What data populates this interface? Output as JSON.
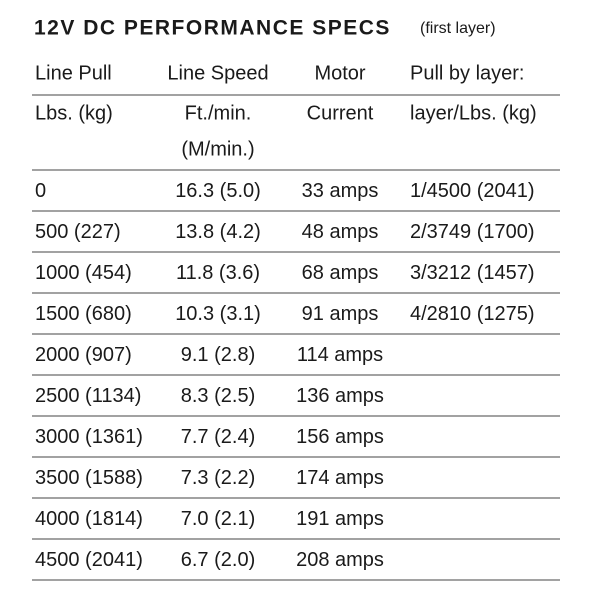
{
  "title": "12V DC PERFORMANCE SPECS",
  "subtitle": "(first layer)",
  "header": {
    "top": [
      "Line Pull",
      "Line Speed",
      "Motor",
      "Pull by layer:"
    ],
    "bottom": [
      "Lbs. (kg)",
      "Ft./min.",
      "Current",
      "layer/Lbs. (kg)"
    ],
    "bottom_extra": "(M/min.)"
  },
  "table": {
    "rows": [
      [
        "0",
        "16.3 (5.0)",
        "33 amps",
        "1/4500 (2041)"
      ],
      [
        "500 (227)",
        "13.8 (4.2)",
        "48 amps",
        "2/3749 (1700)"
      ],
      [
        "1000 (454)",
        "11.8 (3.6)",
        "68 amps",
        "3/3212 (1457)"
      ],
      [
        "1500 (680)",
        "10.3 (3.1)",
        "91 amps",
        "4/2810 (1275)"
      ],
      [
        "2000 (907)",
        "9.1 (2.8)",
        "114 amps"
      ],
      [
        "2500 (1134)",
        "8.3 (2.5)",
        "136 amps"
      ],
      [
        "3000 (1361)",
        "7.7 (2.4)",
        "156 amps"
      ],
      [
        "3500 (1588)",
        "7.3 (2.2)",
        "174 amps"
      ],
      [
        "4000 (1814)",
        "7.0 (2.1)",
        "191 amps"
      ],
      [
        "4500 (2041)",
        "6.7 (2.0)",
        "208 amps"
      ]
    ]
  }
}
